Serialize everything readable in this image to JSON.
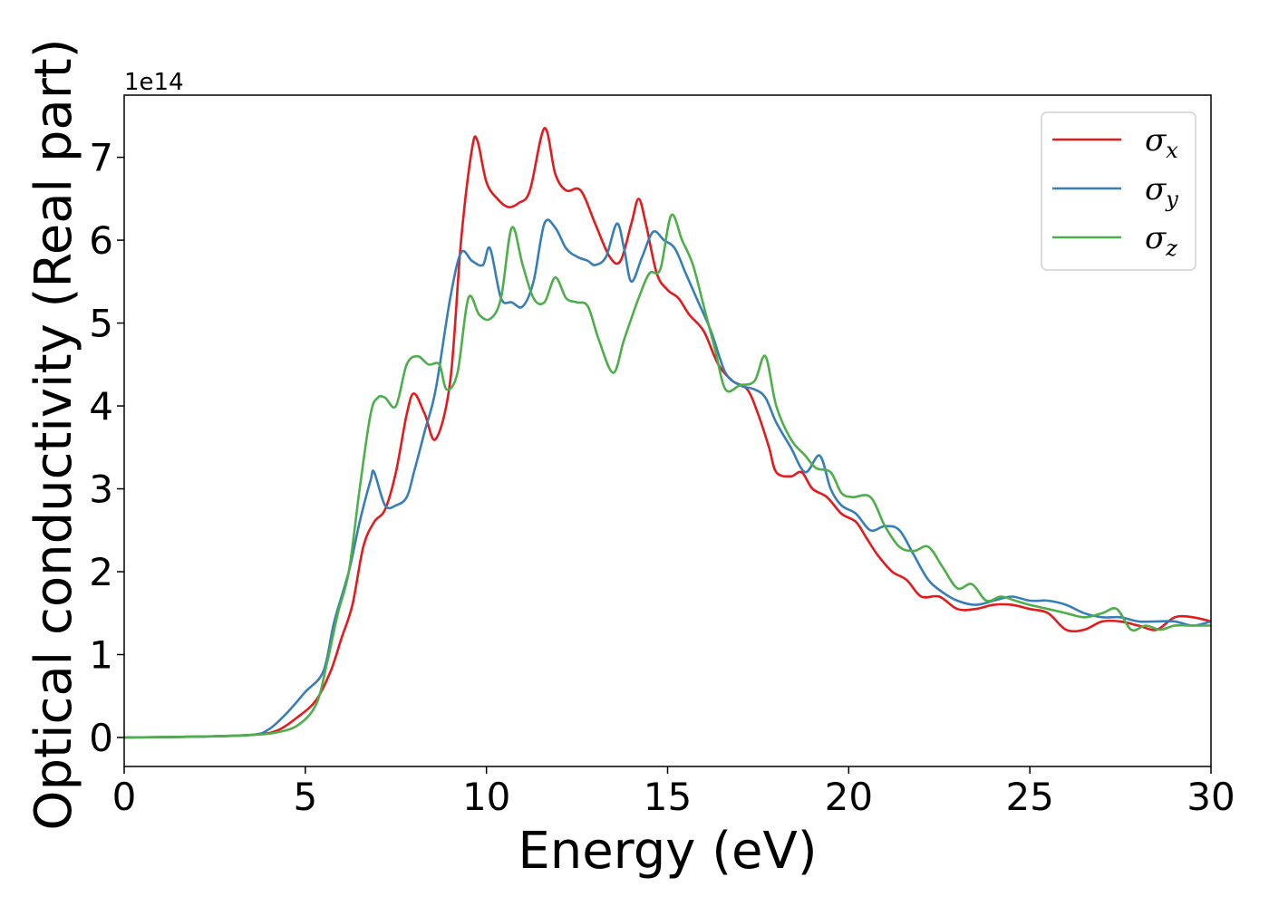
{
  "chart_data": {
    "type": "line",
    "title": "",
    "xlabel": "Energy (eV)",
    "ylabel": "Optical conductivity (Real part)",
    "y_offset_label": "1e14",
    "xlim": [
      0,
      30
    ],
    "ylim": [
      -0.35,
      7.75
    ],
    "x_ticks": [
      0,
      5,
      10,
      15,
      20,
      25,
      30
    ],
    "y_ticks": [
      0,
      1,
      2,
      3,
      4,
      5,
      6,
      7
    ],
    "grid": false,
    "legend_position": "top-right",
    "series": [
      {
        "name": "σx",
        "symbol": "σ",
        "subscript": "x",
        "color": "#e41a1c",
        "points": [
          [
            0,
            0
          ],
          [
            2,
            0.01
          ],
          [
            3.5,
            0.03
          ],
          [
            4.2,
            0.08
          ],
          [
            4.8,
            0.25
          ],
          [
            5.3,
            0.45
          ],
          [
            5.7,
            0.8
          ],
          [
            6.0,
            1.2
          ],
          [
            6.3,
            1.6
          ],
          [
            6.6,
            2.3
          ],
          [
            6.9,
            2.6
          ],
          [
            7.2,
            2.75
          ],
          [
            7.5,
            3.2
          ],
          [
            7.8,
            3.9
          ],
          [
            8.0,
            4.15
          ],
          [
            8.3,
            3.9
          ],
          [
            8.6,
            3.6
          ],
          [
            9.0,
            4.3
          ],
          [
            9.3,
            6.0
          ],
          [
            9.6,
            7.1
          ],
          [
            9.75,
            7.2
          ],
          [
            10.0,
            6.7
          ],
          [
            10.3,
            6.5
          ],
          [
            10.6,
            6.4
          ],
          [
            10.9,
            6.45
          ],
          [
            11.2,
            6.6
          ],
          [
            11.6,
            7.35
          ],
          [
            11.9,
            6.8
          ],
          [
            12.2,
            6.6
          ],
          [
            12.6,
            6.6
          ],
          [
            13.0,
            6.2
          ],
          [
            13.4,
            5.8
          ],
          [
            13.7,
            5.75
          ],
          [
            14.0,
            6.2
          ],
          [
            14.2,
            6.5
          ],
          [
            14.4,
            6.2
          ],
          [
            14.7,
            5.6
          ],
          [
            15.0,
            5.4
          ],
          [
            15.3,
            5.3
          ],
          [
            15.6,
            5.1
          ],
          [
            16.0,
            4.9
          ],
          [
            16.4,
            4.5
          ],
          [
            16.8,
            4.3
          ],
          [
            17.2,
            4.2
          ],
          [
            17.5,
            3.9
          ],
          [
            17.8,
            3.5
          ],
          [
            18.0,
            3.2
          ],
          [
            18.4,
            3.15
          ],
          [
            18.7,
            3.2
          ],
          [
            19.0,
            3.0
          ],
          [
            19.4,
            2.9
          ],
          [
            19.8,
            2.7
          ],
          [
            20.2,
            2.6
          ],
          [
            20.5,
            2.4
          ],
          [
            20.8,
            2.2
          ],
          [
            21.2,
            2.0
          ],
          [
            21.6,
            1.9
          ],
          [
            22.0,
            1.7
          ],
          [
            22.5,
            1.7
          ],
          [
            23.0,
            1.55
          ],
          [
            23.5,
            1.55
          ],
          [
            24.0,
            1.6
          ],
          [
            24.5,
            1.6
          ],
          [
            25.0,
            1.55
          ],
          [
            25.5,
            1.5
          ],
          [
            26.0,
            1.3
          ],
          [
            26.5,
            1.3
          ],
          [
            27.0,
            1.4
          ],
          [
            27.5,
            1.4
          ],
          [
            28.0,
            1.35
          ],
          [
            28.5,
            1.3
          ],
          [
            29.0,
            1.45
          ],
          [
            29.5,
            1.45
          ],
          [
            30.0,
            1.4
          ]
        ]
      },
      {
        "name": "σy",
        "symbol": "σ",
        "subscript": "y",
        "color": "#377eb8",
        "points": [
          [
            0,
            0
          ],
          [
            2,
            0.01
          ],
          [
            3.5,
            0.03
          ],
          [
            4.0,
            0.1
          ],
          [
            4.5,
            0.3
          ],
          [
            5.0,
            0.55
          ],
          [
            5.5,
            0.8
          ],
          [
            5.8,
            1.4
          ],
          [
            6.2,
            2.0
          ],
          [
            6.5,
            2.6
          ],
          [
            6.8,
            3.1
          ],
          [
            6.9,
            3.2
          ],
          [
            7.2,
            2.8
          ],
          [
            7.5,
            2.8
          ],
          [
            7.8,
            2.9
          ],
          [
            8.0,
            3.2
          ],
          [
            8.3,
            3.7
          ],
          [
            8.6,
            4.2
          ],
          [
            9.0,
            5.3
          ],
          [
            9.3,
            5.85
          ],
          [
            9.6,
            5.75
          ],
          [
            9.9,
            5.7
          ],
          [
            10.1,
            5.9
          ],
          [
            10.4,
            5.3
          ],
          [
            10.7,
            5.25
          ],
          [
            11.0,
            5.2
          ],
          [
            11.3,
            5.5
          ],
          [
            11.6,
            6.2
          ],
          [
            11.9,
            6.15
          ],
          [
            12.2,
            5.9
          ],
          [
            12.5,
            5.8
          ],
          [
            12.8,
            5.75
          ],
          [
            13.0,
            5.7
          ],
          [
            13.3,
            5.8
          ],
          [
            13.6,
            6.2
          ],
          [
            13.8,
            5.9
          ],
          [
            14.0,
            5.5
          ],
          [
            14.3,
            5.8
          ],
          [
            14.6,
            6.1
          ],
          [
            14.9,
            6.0
          ],
          [
            15.2,
            5.9
          ],
          [
            15.5,
            5.6
          ],
          [
            15.8,
            5.3
          ],
          [
            16.2,
            4.9
          ],
          [
            16.6,
            4.4
          ],
          [
            17.0,
            4.25
          ],
          [
            17.4,
            4.2
          ],
          [
            17.7,
            4.1
          ],
          [
            18.0,
            3.8
          ],
          [
            18.4,
            3.5
          ],
          [
            18.8,
            3.2
          ],
          [
            19.2,
            3.4
          ],
          [
            19.5,
            3.0
          ],
          [
            19.8,
            2.8
          ],
          [
            20.2,
            2.7
          ],
          [
            20.6,
            2.5
          ],
          [
            21.0,
            2.55
          ],
          [
            21.4,
            2.5
          ],
          [
            21.8,
            2.2
          ],
          [
            22.2,
            1.9
          ],
          [
            22.6,
            1.75
          ],
          [
            23.0,
            1.65
          ],
          [
            23.5,
            1.6
          ],
          [
            24.0,
            1.65
          ],
          [
            24.5,
            1.7
          ],
          [
            25.0,
            1.65
          ],
          [
            25.5,
            1.65
          ],
          [
            26.0,
            1.6
          ],
          [
            26.5,
            1.5
          ],
          [
            27.0,
            1.45
          ],
          [
            27.5,
            1.45
          ],
          [
            28.0,
            1.4
          ],
          [
            28.5,
            1.4
          ],
          [
            29.0,
            1.4
          ],
          [
            29.5,
            1.35
          ],
          [
            30.0,
            1.4
          ]
        ]
      },
      {
        "name": "σz",
        "symbol": "σ",
        "subscript": "z",
        "color": "#4daf4a",
        "points": [
          [
            0,
            0
          ],
          [
            2,
            0.01
          ],
          [
            3.5,
            0.03
          ],
          [
            4.2,
            0.06
          ],
          [
            4.8,
            0.15
          ],
          [
            5.3,
            0.4
          ],
          [
            5.6,
            0.9
          ],
          [
            5.9,
            1.5
          ],
          [
            6.2,
            2.0
          ],
          [
            6.5,
            3.0
          ],
          [
            6.8,
            3.9
          ],
          [
            7.0,
            4.1
          ],
          [
            7.2,
            4.1
          ],
          [
            7.5,
            4.0
          ],
          [
            7.8,
            4.5
          ],
          [
            8.1,
            4.6
          ],
          [
            8.4,
            4.5
          ],
          [
            8.7,
            4.5
          ],
          [
            8.9,
            4.2
          ],
          [
            9.2,
            4.4
          ],
          [
            9.5,
            5.3
          ],
          [
            9.8,
            5.1
          ],
          [
            10.1,
            5.05
          ],
          [
            10.4,
            5.3
          ],
          [
            10.7,
            6.15
          ],
          [
            11.0,
            5.7
          ],
          [
            11.3,
            5.3
          ],
          [
            11.6,
            5.25
          ],
          [
            11.9,
            5.55
          ],
          [
            12.2,
            5.3
          ],
          [
            12.5,
            5.25
          ],
          [
            12.8,
            5.2
          ],
          [
            13.1,
            4.8
          ],
          [
            13.5,
            4.4
          ],
          [
            13.8,
            4.8
          ],
          [
            14.2,
            5.3
          ],
          [
            14.5,
            5.6
          ],
          [
            14.8,
            5.65
          ],
          [
            15.1,
            6.3
          ],
          [
            15.4,
            6.0
          ],
          [
            15.7,
            5.7
          ],
          [
            16.0,
            5.2
          ],
          [
            16.3,
            4.7
          ],
          [
            16.6,
            4.2
          ],
          [
            17.0,
            4.25
          ],
          [
            17.4,
            4.3
          ],
          [
            17.7,
            4.6
          ],
          [
            18.0,
            4.0
          ],
          [
            18.4,
            3.6
          ],
          [
            18.8,
            3.4
          ],
          [
            19.1,
            3.25
          ],
          [
            19.5,
            3.2
          ],
          [
            19.8,
            2.95
          ],
          [
            20.1,
            2.9
          ],
          [
            20.6,
            2.9
          ],
          [
            21.0,
            2.55
          ],
          [
            21.4,
            2.3
          ],
          [
            21.8,
            2.25
          ],
          [
            22.2,
            2.3
          ],
          [
            22.6,
            2.05
          ],
          [
            23.0,
            1.8
          ],
          [
            23.4,
            1.85
          ],
          [
            23.8,
            1.65
          ],
          [
            24.2,
            1.7
          ],
          [
            24.6,
            1.65
          ],
          [
            25.0,
            1.6
          ],
          [
            25.5,
            1.55
          ],
          [
            26.0,
            1.5
          ],
          [
            26.5,
            1.45
          ],
          [
            27.0,
            1.5
          ],
          [
            27.4,
            1.55
          ],
          [
            27.8,
            1.3
          ],
          [
            28.2,
            1.35
          ],
          [
            28.6,
            1.3
          ],
          [
            29.0,
            1.35
          ],
          [
            29.5,
            1.35
          ],
          [
            30.0,
            1.35
          ]
        ]
      }
    ]
  }
}
